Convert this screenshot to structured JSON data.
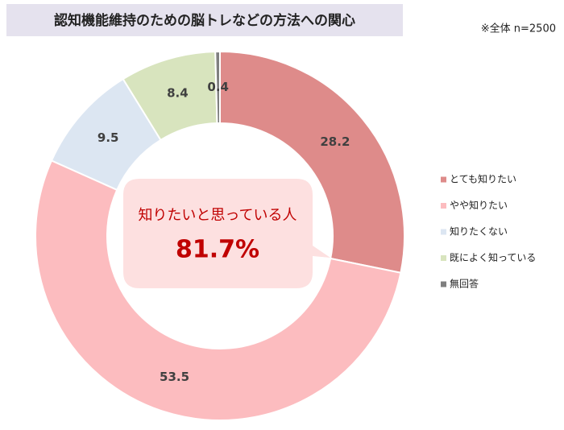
{
  "chart_data": {
    "type": "donut",
    "title": "認知機能維持のための脳トレなどの方法への関心",
    "subtitle": "※全体 n=2500",
    "categories": [
      "とても知りたい",
      "やや知りたい",
      "知りたくない",
      "既によく知っている",
      "無回答"
    ],
    "values": [
      28.2,
      53.5,
      9.5,
      8.4,
      0.4
    ],
    "colors": [
      "#de8b8a",
      "#fcbcbf",
      "#dce6f2",
      "#d8e4be",
      "#7f7f7f"
    ],
    "legend": "right",
    "callout": {
      "label": "知りたいと思っている人",
      "value": "81.7%"
    }
  }
}
